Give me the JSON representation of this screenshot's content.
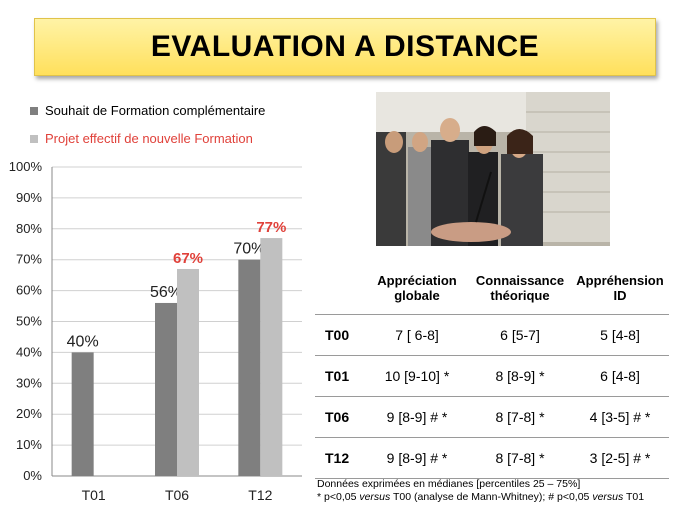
{
  "title": "EVALUATION A DISTANCE",
  "colors": {
    "series1": "#7f7f7f",
    "series2": "#c0c0c0",
    "highlight": "#e0413a",
    "banner": "#ffe680"
  },
  "chart_data": {
    "type": "bar",
    "categories": [
      "T01",
      "T06",
      "T12"
    ],
    "series": [
      {
        "name": "Souhait de Formation complémentaire",
        "values": [
          40,
          56,
          70
        ],
        "labels": [
          "40%",
          "56%",
          "70%"
        ]
      },
      {
        "name": "Projet effectif de nouvelle Formation",
        "values": [
          null,
          67,
          77
        ],
        "labels": [
          "",
          "67%",
          "77%"
        ]
      }
    ],
    "yticks": [
      "0%",
      "10%",
      "20%",
      "30%",
      "40%",
      "50%",
      "60%",
      "70%",
      "80%",
      "90%",
      "100%"
    ],
    "ylim": [
      0,
      100
    ],
    "grid": true,
    "legend": "top-left"
  },
  "table": {
    "headers": [
      "",
      "Appréciation globale",
      "Connaissance théorique",
      "Appréhension ID"
    ],
    "rows": [
      {
        "label": "T00",
        "cells": [
          "7 [ 6-8]",
          "6 [5-7]",
          "5 [4-8]"
        ]
      },
      {
        "label": "T01",
        "cells": [
          "10 [9-10] *",
          "8 [8-9] *",
          "6 [4-8]"
        ]
      },
      {
        "label": "T06",
        "cells": [
          "9 [8-9] # *",
          "8 [7-8] *",
          "4 [3-5] # *"
        ]
      },
      {
        "label": "T12",
        "cells": [
          "9 [8-9] # *",
          "8 [7-8] *",
          "3 [2-5] # *"
        ]
      }
    ]
  },
  "notes": {
    "line1": "Données exprimées en médianes [percentiles 25 – 75%]",
    "line2_a": "* p<0,05 ",
    "line2_versus1": "versus",
    "line2_b": " T00 (analyse de Mann-Whitney);  # p<0,05 ",
    "line2_versus2": "versus",
    "line2_c": " T01"
  }
}
